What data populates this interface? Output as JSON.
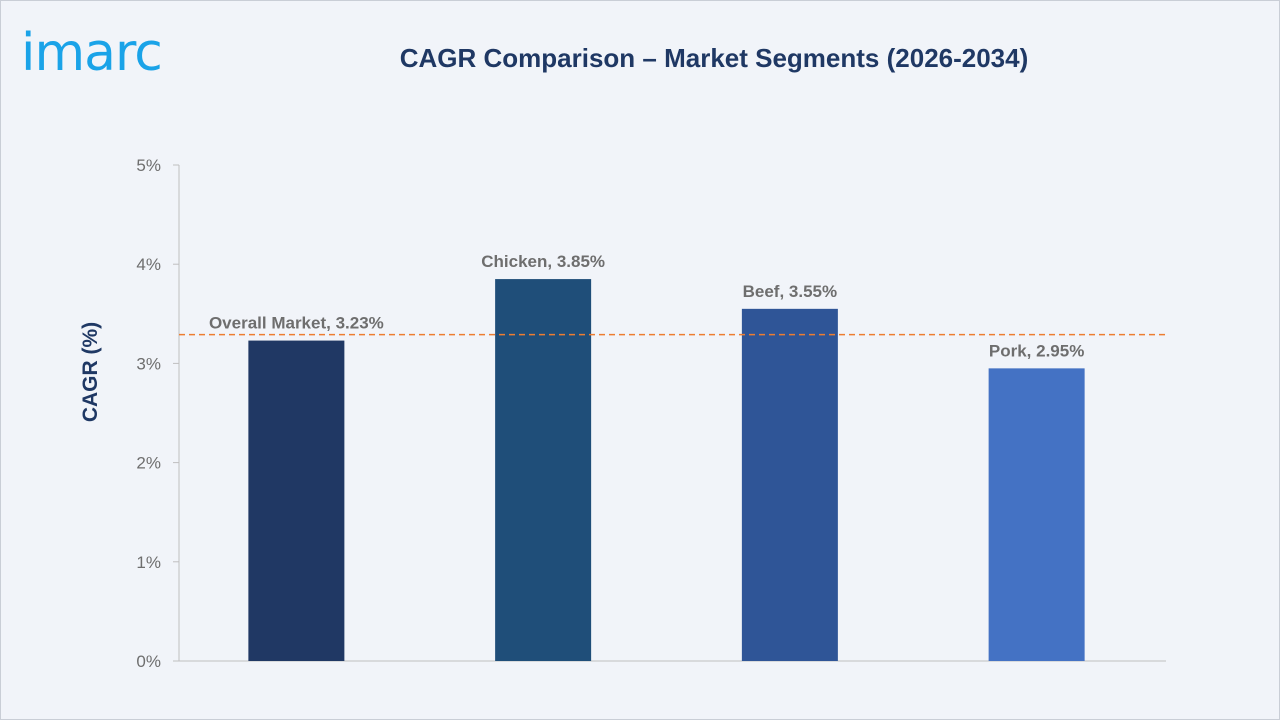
{
  "logo": {
    "text": "imarc",
    "color": "#1aa3e8"
  },
  "chart_data": {
    "type": "bar",
    "title": "CAGR Comparison – Market Segments (2026-2034)",
    "ylabel": "CAGR (%)",
    "xlabel": "",
    "ylim": [
      0,
      5
    ],
    "yticks": [
      0,
      1,
      2,
      3,
      4,
      5
    ],
    "ytick_labels": [
      "0%",
      "1%",
      "2%",
      "3%",
      "4%",
      "5%"
    ],
    "categories": [
      "Overall Market",
      "Chicken",
      "Beef",
      "Pork"
    ],
    "values": [
      3.23,
      3.85,
      3.55,
      2.95
    ],
    "data_labels": [
      "Overall Market, 3.23%",
      "Chicken, 3.85%",
      "Beef, 3.55%",
      "Pork, 2.95%"
    ],
    "bar_colors": [
      "#203864",
      "#1f4e79",
      "#2f5597",
      "#4472c4"
    ],
    "reference_line": {
      "value": 3.29,
      "style": "dashed",
      "color": "#ed7d31"
    },
    "grid": false,
    "legend": "none"
  }
}
